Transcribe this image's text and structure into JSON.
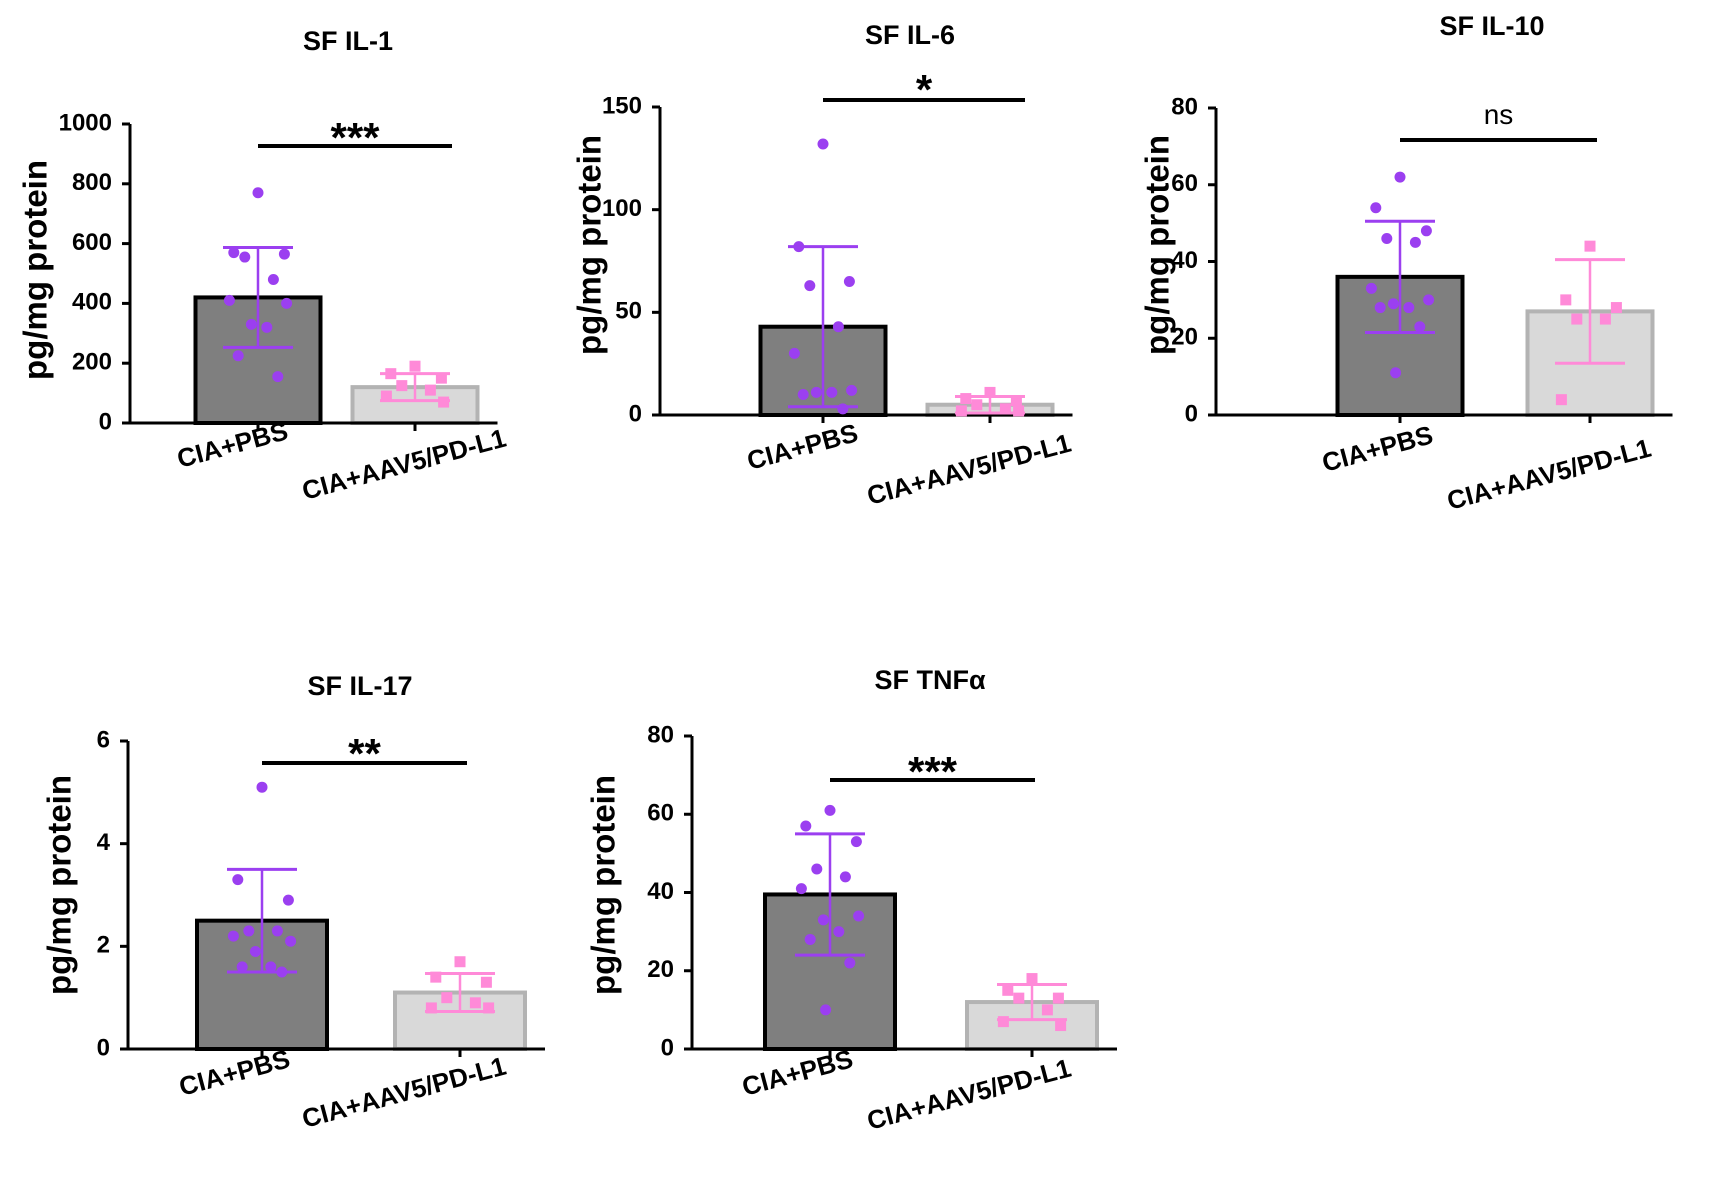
{
  "figure": {
    "colors": {
      "pbs_bar_fill": "#7f7f7f",
      "pbs_bar_edge": "#000000",
      "aav_bar_fill": "#d9d9d9",
      "aav_bar_edge": "#b3b3b3",
      "pbs_points": "#9b3ff0",
      "aav_points": "#ff8ad8"
    },
    "marker_icons": {
      "pbs": "circle-marker",
      "aav": "square-marker"
    }
  },
  "chart_data": [
    {
      "type": "bar",
      "title": "SF IL-1",
      "ylabel": "pg/mg protein",
      "xlabel": "",
      "ylim": [
        0,
        1000
      ],
      "yticks": [
        "0",
        "200",
        "400",
        "600",
        "800",
        "1000"
      ],
      "ytick_values": [
        0,
        200,
        400,
        600,
        800,
        1000
      ],
      "categories": [
        "CIA+PBS",
        "CIA+AAV5/PD-L1"
      ],
      "values": [
        420,
        120
      ],
      "error_sd": [
        167,
        45
      ],
      "points": [
        [
          770,
          570,
          565,
          555,
          480,
          410,
          400,
          330,
          320,
          225,
          155
        ],
        [
          190,
          165,
          150,
          125,
          110,
          90,
          70
        ]
      ],
      "significance": "***"
    },
    {
      "type": "bar",
      "title": "SF IL-6",
      "ylabel": "pg/mg protein",
      "xlabel": "",
      "ylim": [
        0,
        150
      ],
      "yticks": [
        "0",
        "50",
        "100",
        "150"
      ],
      "ytick_values": [
        0,
        50,
        100,
        150
      ],
      "categories": [
        "CIA+PBS",
        "CIA+AAV5/PD-L1"
      ],
      "values": [
        43,
        5
      ],
      "error_sd": [
        39,
        4
      ],
      "points": [
        [
          132,
          82,
          65,
          63,
          43,
          30,
          12,
          11,
          11,
          10,
          3
        ],
        [
          11,
          8,
          7,
          5,
          3,
          2,
          2
        ]
      ],
      "significance": "*"
    },
    {
      "type": "bar",
      "title": "SF IL-10",
      "ylabel": "pg/mg protein",
      "xlabel": "",
      "ylim": [
        0,
        80
      ],
      "yticks": [
        "0",
        "20",
        "40",
        "60",
        "80"
      ],
      "ytick_values": [
        0,
        20,
        40,
        60,
        80
      ],
      "categories": [
        "CIA+PBS",
        "CIA+AAV5/PD-L1"
      ],
      "values": [
        36,
        27
      ],
      "error_sd": [
        14.5,
        13.5
      ],
      "points": [
        [
          62,
          54,
          48,
          46,
          45,
          33,
          30,
          29,
          28,
          28,
          23,
          11
        ],
        [
          44,
          30,
          28,
          25,
          25,
          4
        ]
      ],
      "significance": "ns"
    },
    {
      "type": "bar",
      "title": "SF IL-17",
      "ylabel": "pg/mg protein",
      "xlabel": "",
      "ylim": [
        0,
        6
      ],
      "yticks": [
        "0",
        "2",
        "4",
        "6"
      ],
      "ytick_values": [
        0,
        2,
        4,
        6
      ],
      "categories": [
        "CIA+PBS",
        "CIA+AAV5/PD-L1"
      ],
      "values": [
        2.5,
        1.1
      ],
      "error_sd": [
        1.0,
        0.37
      ],
      "points": [
        [
          5.1,
          3.3,
          2.9,
          2.3,
          2.3,
          2.2,
          2.1,
          1.9,
          1.6,
          1.6,
          1.5
        ],
        [
          1.7,
          1.4,
          1.3,
          1.0,
          0.9,
          0.8,
          0.8
        ]
      ],
      "significance": "**"
    },
    {
      "type": "bar",
      "title": "SF TNFα",
      "ylabel": "pg/mg protein",
      "xlabel": "",
      "ylim": [
        0,
        80
      ],
      "yticks": [
        "0",
        "20",
        "40",
        "60",
        "80"
      ],
      "ytick_values": [
        0,
        20,
        40,
        60,
        80
      ],
      "categories": [
        "CIA+PBS",
        "CIA+AAV5/PD-L1"
      ],
      "values": [
        39.5,
        12
      ],
      "error_sd": [
        15.5,
        4.5
      ],
      "points": [
        [
          61,
          57,
          53,
          46,
          44,
          41,
          34,
          33,
          30,
          28,
          22,
          10
        ],
        [
          18,
          15,
          13,
          13,
          10,
          7,
          6
        ]
      ],
      "significance": "***"
    }
  ]
}
